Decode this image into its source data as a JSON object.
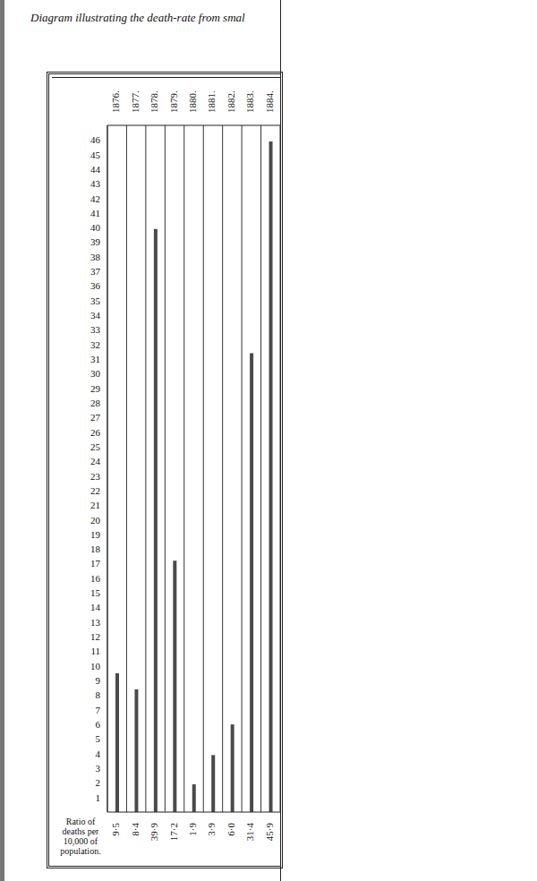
{
  "chart_data": {
    "type": "bar",
    "title": "Diagram illustrating the death-rate from smal",
    "categories": [
      "1876.",
      "1877.",
      "1878.",
      "1879.",
      "1880.",
      "1881.",
      "1882.",
      "1883.",
      "1884."
    ],
    "values": [
      9.5,
      8.4,
      39.9,
      17.2,
      1.9,
      3.9,
      6.0,
      31.4,
      45.9
    ],
    "value_labels": [
      "9·5",
      "8·4",
      "39·9",
      "17·2",
      "1·9",
      "3·9",
      "6·0",
      "31·4",
      "45·9"
    ],
    "annotation": "Ratio of deaths per 10,000 of population.",
    "color": "#4a4a4a",
    "ylim": [
      0,
      47
    ],
    "yticks": [
      1,
      2,
      3,
      4,
      5,
      6,
      7,
      8,
      9,
      10,
      11,
      12,
      13,
      14,
      15,
      16,
      17,
      18,
      19,
      20,
      21,
      22,
      23,
      24,
      25,
      26,
      27,
      28,
      29,
      30,
      31,
      32,
      33,
      34,
      35,
      36,
      37,
      38,
      39,
      40,
      41,
      42,
      43,
      44,
      45,
      46
    ],
    "grid": true,
    "data_labels": true
  }
}
